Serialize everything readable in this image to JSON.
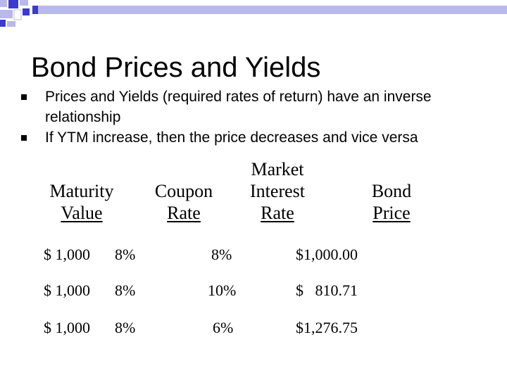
{
  "slide": {
    "title": "Bond Prices and Yields",
    "bullets": [
      "Prices and Yields (required rates of return) have an inverse relationship",
      "If YTM increase, then the price decreases and vice versa"
    ]
  },
  "table": {
    "headers": [
      {
        "line1": "Maturity",
        "line2": "Value"
      },
      {
        "line1": "Coupon",
        "line2": "Rate"
      },
      {
        "line0": "Market",
        "line1": "Interest",
        "line2": "Rate"
      },
      {
        "line1": "Bond",
        "line2": "Price"
      }
    ],
    "rows": [
      [
        "$ 1,000",
        "8%",
        "8%",
        "$1,000.00"
      ],
      [
        "$ 1,000",
        "8%",
        "10%",
        "$   810.71"
      ],
      [
        "$ 1,000",
        "8%",
        "6%",
        "$1,276.75"
      ]
    ]
  },
  "colors": {
    "deco_blue": "#3a3ad0",
    "deco_light": "#b8b8ea"
  }
}
